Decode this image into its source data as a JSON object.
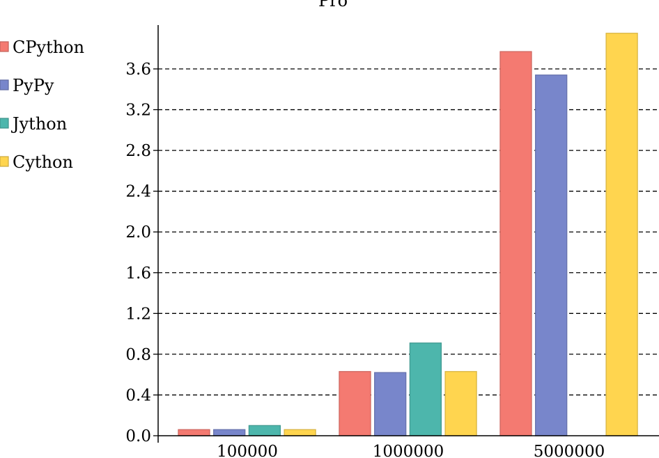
{
  "chart_data": {
    "type": "bar",
    "title": "Pro",
    "xlabel": "",
    "ylabel": "",
    "categories": [
      "100000",
      "1000000",
      "5000000"
    ],
    "series": [
      {
        "name": "CPython",
        "values": [
          0.06,
          0.63,
          3.77
        ],
        "color": "#f47a71"
      },
      {
        "name": "PyPy",
        "values": [
          0.06,
          0.62,
          3.54
        ],
        "color": "#7886cb"
      },
      {
        "name": "Jython",
        "values": [
          0.1,
          0.91,
          null
        ],
        "color": "#4db6ac"
      },
      {
        "name": "Cython",
        "values": [
          0.06,
          0.63,
          3.95
        ],
        "color": "#ffd54f"
      }
    ],
    "ylim": [
      0,
      4.0
    ],
    "yticks": [
      "0.0",
      "0.4",
      "0.8",
      "1.2",
      "1.6",
      "2.0",
      "2.4",
      "2.8",
      "3.2",
      "3.6"
    ],
    "grid": "horizontal-dashed",
    "legend_position": "top-left"
  }
}
